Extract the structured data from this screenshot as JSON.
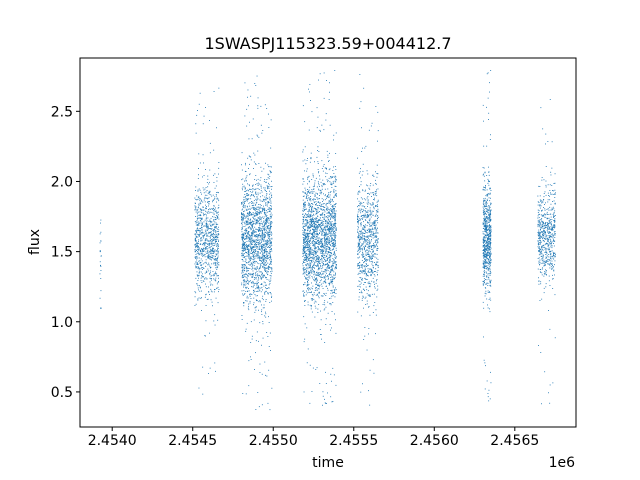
{
  "chart_data": {
    "type": "scatter",
    "title": "1SWASPJ115323.59+004412.7",
    "xlabel": "time",
    "ylabel": "flux",
    "x_offset_label": "1e6",
    "xlim": [
      2453800,
      2456880
    ],
    "ylim": [
      0.25,
      2.88
    ],
    "xticks": [
      2454000,
      2454500,
      2455000,
      2455500,
      2456000,
      2456500
    ],
    "xtick_labels": [
      "2.4540",
      "2.4545",
      "2.4550",
      "2.4555",
      "2.4560",
      "2.4565"
    ],
    "yticks": [
      0.5,
      1.0,
      1.5,
      2.0,
      2.5
    ],
    "ytick_labels": [
      "0.5",
      "1.0",
      "1.5",
      "2.0",
      "2.5"
    ],
    "grid": false,
    "legend": "none",
    "marker_color": "#1f77b4",
    "series": [
      {
        "clusters": [
          {
            "x_start": 2453920,
            "x_end": 2453930,
            "median": 1.45,
            "spread": 0.2,
            "y_min": 1.1,
            "y_max": 1.75,
            "count": 25
          },
          {
            "x_start": 2454510,
            "x_end": 2454660,
            "median": 1.58,
            "spread": 0.2,
            "y_min": 0.45,
            "y_max": 2.7,
            "count": 900
          },
          {
            "x_start": 2454800,
            "x_end": 2454990,
            "median": 1.58,
            "spread": 0.22,
            "y_min": 0.37,
            "y_max": 2.76,
            "count": 1700
          },
          {
            "x_start": 2455180,
            "x_end": 2455390,
            "median": 1.6,
            "spread": 0.22,
            "y_min": 0.38,
            "y_max": 2.8,
            "count": 2000
          },
          {
            "x_start": 2455520,
            "x_end": 2455650,
            "median": 1.58,
            "spread": 0.2,
            "y_min": 0.38,
            "y_max": 2.82,
            "count": 800
          },
          {
            "x_start": 2456300,
            "x_end": 2456350,
            "median": 1.6,
            "spread": 0.18,
            "y_min": 0.4,
            "y_max": 2.8,
            "count": 700
          },
          {
            "x_start": 2456640,
            "x_end": 2456750,
            "median": 1.62,
            "spread": 0.16,
            "y_min": 0.38,
            "y_max": 2.66,
            "count": 600
          }
        ]
      }
    ]
  }
}
